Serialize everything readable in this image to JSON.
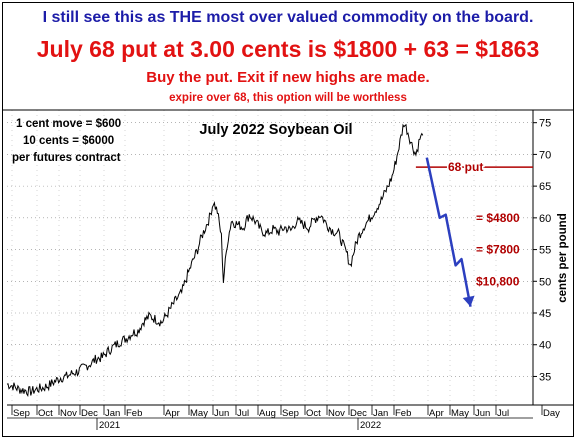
{
  "header": {
    "line1": "I still see this as THE most over valued commodity on the board.",
    "line2": "July 68 put at 3.00 cents is $1800 + 63 = $1863",
    "line3": "Buy the put. Exit if new highs are made.",
    "line4": "expire over 68, this option will be worthless"
  },
  "colors": {
    "header_blue": "#1c1ca8",
    "red": "#e21212",
    "dark_red": "#b00000",
    "arrow_blue": "#2c3fbf",
    "price_line": "#000000"
  },
  "chart_data": {
    "type": "line",
    "title": "July 2022 Soybean Oil",
    "ylabel": "cents per pound",
    "ylim": [
      30.5,
      77
    ],
    "yticks": [
      35,
      40,
      45,
      50,
      55,
      60,
      65,
      70,
      75
    ],
    "xticks": [
      "Sep",
      "Oct",
      "Nov",
      "Dec",
      "Jan",
      "Feb",
      "Apr",
      "May",
      "Jun",
      "Jul",
      "Aug",
      "Sep",
      "Oct",
      "Nov",
      "Dec",
      "Jan",
      "Feb",
      "Apr",
      "May",
      "Jun",
      "Jul",
      "Day"
    ],
    "year_labels": [
      "2021",
      "2022"
    ],
    "notes": [
      "1 cent move = $600",
      "10 cents = $6000",
      "per futures contract"
    ],
    "series": [
      {
        "values": [
          [
            0,
            33.8
          ],
          [
            6,
            33.5
          ],
          [
            12,
            33.0
          ],
          [
            18,
            32.8
          ],
          [
            24,
            32.6
          ],
          [
            30,
            33.0
          ],
          [
            36,
            33.2
          ],
          [
            42,
            33.6
          ],
          [
            48,
            34.2
          ],
          [
            54,
            34.8
          ],
          [
            60,
            35.0
          ],
          [
            66,
            35.5
          ],
          [
            72,
            35.8
          ],
          [
            78,
            36.5
          ],
          [
            84,
            37.0
          ],
          [
            90,
            37.8
          ],
          [
            96,
            38.0
          ],
          [
            102,
            39.0
          ],
          [
            108,
            39.8
          ],
          [
            114,
            40.5
          ],
          [
            120,
            41.0
          ],
          [
            126,
            41.8
          ],
          [
            132,
            42.2
          ],
          [
            138,
            43.8
          ],
          [
            144,
            44.5
          ],
          [
            150,
            44.0
          ],
          [
            156,
            43.5
          ],
          [
            160,
            44.5
          ],
          [
            166,
            46.0
          ],
          [
            170,
            47.0
          ],
          [
            176,
            48.2
          ],
          [
            182,
            51.0
          ],
          [
            188,
            53.5
          ],
          [
            192,
            55.0
          ],
          [
            196,
            57.0
          ],
          [
            200,
            58.5
          ],
          [
            204,
            60.0
          ],
          [
            208,
            62.5
          ],
          [
            212,
            61.0
          ],
          [
            216,
            57.0
          ],
          [
            218,
            50.0
          ],
          [
            222,
            56.0
          ],
          [
            226,
            59.5
          ],
          [
            232,
            59.0
          ],
          [
            238,
            58.5
          ],
          [
            244,
            60.5
          ],
          [
            250,
            59.5
          ],
          [
            256,
            58.0
          ],
          [
            262,
            57.5
          ],
          [
            268,
            58.2
          ],
          [
            274,
            57.8
          ],
          [
            280,
            58.5
          ],
          [
            286,
            58.0
          ],
          [
            292,
            59.5
          ],
          [
            298,
            59.0
          ],
          [
            304,
            58.5
          ],
          [
            310,
            59.8
          ],
          [
            316,
            60.5
          ],
          [
            322,
            59.0
          ],
          [
            328,
            58.0
          ],
          [
            334,
            57.5
          ],
          [
            338,
            56.0
          ],
          [
            342,
            54.5
          ],
          [
            346,
            52.5
          ],
          [
            350,
            55.0
          ],
          [
            354,
            57.0
          ],
          [
            360,
            58.8
          ],
          [
            366,
            60.0
          ],
          [
            372,
            61.5
          ],
          [
            378,
            63.0
          ],
          [
            384,
            65.0
          ],
          [
            388,
            66.5
          ],
          [
            392,
            69.0
          ],
          [
            396,
            72.0
          ],
          [
            400,
            75.0
          ],
          [
            404,
            73.5
          ],
          [
            408,
            71.5
          ],
          [
            412,
            70.0
          ],
          [
            416,
            72.5
          ],
          [
            419,
            73.0
          ]
        ]
      }
    ],
    "annotations": [
      {
        "text": "68 put",
        "y": 68
      },
      {
        "text": "= $4800",
        "y": 60
      },
      {
        "text": "= $7800",
        "y": 55
      },
      {
        "text": "$10,800",
        "y": 50
      }
    ],
    "projection_path": [
      [
        423,
        69.5
      ],
      [
        436,
        60.0
      ],
      [
        442,
        60.5
      ],
      [
        452,
        52.5
      ],
      [
        458,
        53.5
      ],
      [
        467,
        46.0
      ]
    ]
  }
}
